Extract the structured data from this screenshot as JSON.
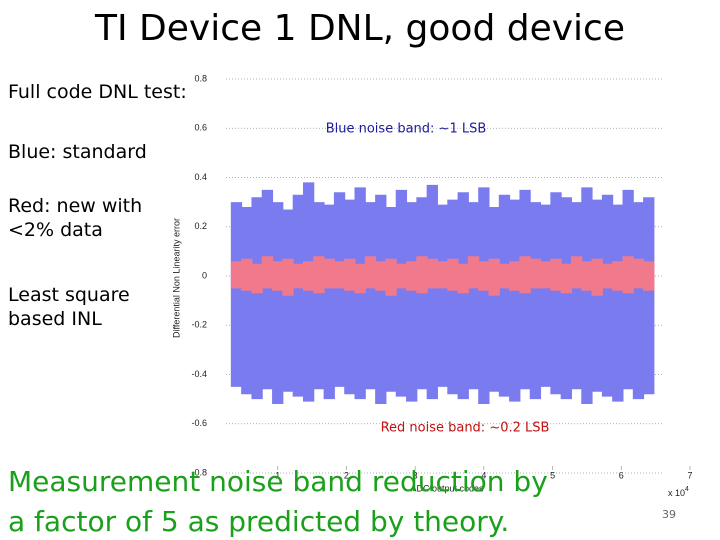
{
  "slide": {
    "title": "TI Device 1 DNL, good device",
    "notes": [
      "Full code DNL test:",
      "Blue: standard",
      "Red: new with <2% data",
      "Least square based INL"
    ],
    "conclusion": "Measurement noise band reduction by a factor of 5 as predicted by theory.",
    "page_number": "39"
  },
  "chart_data": {
    "type": "band",
    "x_label": "ADC output codes",
    "y_label": "Differential Non Linearity error",
    "x_scale": {
      "base": "x 10",
      "exponent": "4"
    },
    "annotations": [
      "Blue noise band: ~1 LSB",
      "Red noise band: ~0.2 LSB"
    ],
    "xlim": [
      0,
      7
    ],
    "xticks": [
      1,
      2,
      3,
      4,
      5,
      6,
      7
    ],
    "ylim": [
      -0.8,
      0.8
    ],
    "yticks": [
      -0.8,
      -0.6,
      -0.4,
      -0.2,
      0,
      0.2,
      0.4,
      0.6,
      0.8
    ],
    "grid": true,
    "x": [
      0.4,
      0.55,
      0.7,
      0.85,
      1,
      1.15,
      1.3,
      1.45,
      1.6,
      1.75,
      1.9,
      2.05,
      2.2,
      2.35,
      2.5,
      2.65,
      2.8,
      2.95,
      3.1,
      3.25,
      3.4,
      3.55,
      3.7,
      3.85,
      4,
      4.15,
      4.3,
      4.45,
      4.6,
      4.75,
      4.9,
      5.05,
      5.2,
      5.35,
      5.5,
      5.65,
      5.8,
      5.95,
      6.1,
      6.25,
      6.4
    ],
    "series": [
      {
        "color": "#7b7bf0",
        "high": [
          0.3,
          0.28,
          0.32,
          0.35,
          0.3,
          0.27,
          0.33,
          0.38,
          0.3,
          0.29,
          0.34,
          0.31,
          0.36,
          0.3,
          0.33,
          0.28,
          0.35,
          0.3,
          0.32,
          0.37,
          0.29,
          0.31,
          0.34,
          0.3,
          0.36,
          0.28,
          0.33,
          0.31,
          0.35,
          0.3,
          0.29,
          0.34,
          0.32,
          0.3,
          0.36,
          0.31,
          0.33,
          0.29,
          0.35,
          0.3,
          0.32
        ],
        "low": [
          -0.45,
          -0.48,
          -0.5,
          -0.46,
          -0.52,
          -0.47,
          -0.49,
          -0.51,
          -0.46,
          -0.5,
          -0.45,
          -0.48,
          -0.5,
          -0.46,
          -0.52,
          -0.47,
          -0.49,
          -0.51,
          -0.46,
          -0.5,
          -0.45,
          -0.48,
          -0.5,
          -0.46,
          -0.52,
          -0.47,
          -0.49,
          -0.51,
          -0.46,
          -0.5,
          -0.45,
          -0.48,
          -0.5,
          -0.46,
          -0.52,
          -0.47,
          -0.49,
          -0.51,
          -0.46,
          -0.5,
          -0.48
        ]
      },
      {
        "color": "#f07a8c",
        "high": [
          0.06,
          0.07,
          0.05,
          0.08,
          0.06,
          0.07,
          0.05,
          0.06,
          0.08,
          0.07,
          0.06,
          0.07,
          0.05,
          0.08,
          0.06,
          0.07,
          0.05,
          0.06,
          0.08,
          0.07,
          0.06,
          0.07,
          0.05,
          0.08,
          0.06,
          0.07,
          0.05,
          0.06,
          0.08,
          0.07,
          0.06,
          0.07,
          0.05,
          0.08,
          0.06,
          0.07,
          0.05,
          0.06,
          0.08,
          0.07,
          0.06
        ],
        "low": [
          -0.05,
          -0.06,
          -0.07,
          -0.05,
          -0.06,
          -0.08,
          -0.05,
          -0.06,
          -0.07,
          -0.05,
          -0.05,
          -0.06,
          -0.07,
          -0.05,
          -0.06,
          -0.08,
          -0.05,
          -0.06,
          -0.07,
          -0.05,
          -0.05,
          -0.06,
          -0.07,
          -0.05,
          -0.06,
          -0.08,
          -0.05,
          -0.06,
          -0.07,
          -0.05,
          -0.05,
          -0.06,
          -0.07,
          -0.05,
          -0.06,
          -0.08,
          -0.05,
          -0.06,
          -0.07,
          -0.05,
          -0.06
        ]
      }
    ]
  }
}
